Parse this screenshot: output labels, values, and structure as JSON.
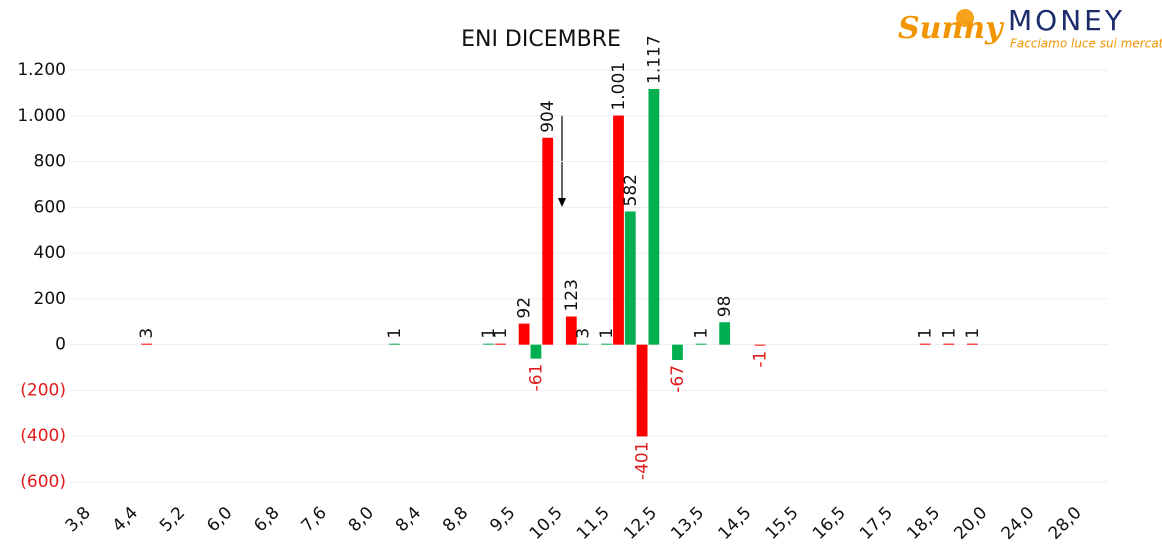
{
  "logo": {
    "brand": "Sunny",
    "name": "MONEY",
    "tagline": "Facciamo luce sui mercati"
  },
  "chart_data": {
    "type": "bar",
    "title": "ENI DICEMBRE",
    "categories": [
      "3,8",
      null,
      "4,4",
      null,
      "5,2",
      null,
      "6,0",
      null,
      "6,8",
      null,
      "7,6",
      null,
      "8,0",
      null,
      "8,4",
      null,
      "8,8",
      null,
      "9,5",
      null,
      "10,5",
      null,
      "11,5",
      null,
      "12,5",
      null,
      "13,5",
      null,
      "14,5",
      null,
      "15,5",
      null,
      "16,5",
      null,
      "17,5",
      null,
      "18,5",
      null,
      "20,0",
      null,
      "24,0",
      null,
      "28,0",
      null
    ],
    "series": [
      {
        "color": "#ff0000",
        "values": [
          null,
          null,
          null,
          3,
          null,
          null,
          null,
          null,
          null,
          null,
          null,
          null,
          null,
          null,
          null,
          null,
          null,
          null,
          1,
          92,
          904,
          123,
          null,
          1001,
          -401,
          null,
          null,
          null,
          null,
          -1,
          null,
          null,
          null,
          null,
          null,
          null,
          1,
          1,
          1,
          null,
          null,
          null,
          null,
          null
        ],
        "value_labels": [
          null,
          null,
          null,
          "3",
          null,
          null,
          null,
          null,
          null,
          null,
          null,
          null,
          null,
          null,
          null,
          null,
          null,
          null,
          "1",
          "92",
          "904",
          "123",
          null,
          "1.001",
          "-401",
          null,
          null,
          null,
          null,
          "-1",
          null,
          null,
          null,
          null,
          null,
          null,
          "1",
          "1",
          "1",
          null,
          null,
          null,
          null,
          null
        ]
      },
      {
        "color": "#00b050",
        "values": [
          null,
          null,
          null,
          null,
          null,
          null,
          null,
          null,
          null,
          null,
          null,
          null,
          null,
          1,
          null,
          null,
          null,
          1,
          null,
          -61,
          null,
          3,
          1,
          582,
          1117,
          -67,
          1,
          98,
          null,
          null,
          null,
          null,
          null,
          null,
          null,
          null,
          null,
          null,
          null,
          null,
          null,
          null,
          null,
          null
        ],
        "value_labels": [
          null,
          null,
          null,
          null,
          null,
          null,
          null,
          null,
          null,
          null,
          null,
          null,
          null,
          "1",
          null,
          null,
          null,
          "1",
          null,
          "-61",
          null,
          "3",
          "1",
          "582",
          "1.117",
          "-67",
          "1",
          "98",
          null,
          null,
          null,
          null,
          null,
          null,
          null,
          null,
          null,
          null,
          null,
          null,
          null,
          null,
          null,
          null
        ]
      }
    ],
    "ylim": [
      -600,
      1200
    ],
    "yticks": [
      {
        "value": -600,
        "label": "(600)"
      },
      {
        "value": -400,
        "label": "(400)"
      },
      {
        "value": -200,
        "label": "(200)"
      },
      0,
      200,
      400,
      600,
      800,
      {
        "value": 1000,
        "label": "1.000"
      },
      {
        "value": 1200,
        "label": "1.200"
      }
    ],
    "grid": true
  }
}
